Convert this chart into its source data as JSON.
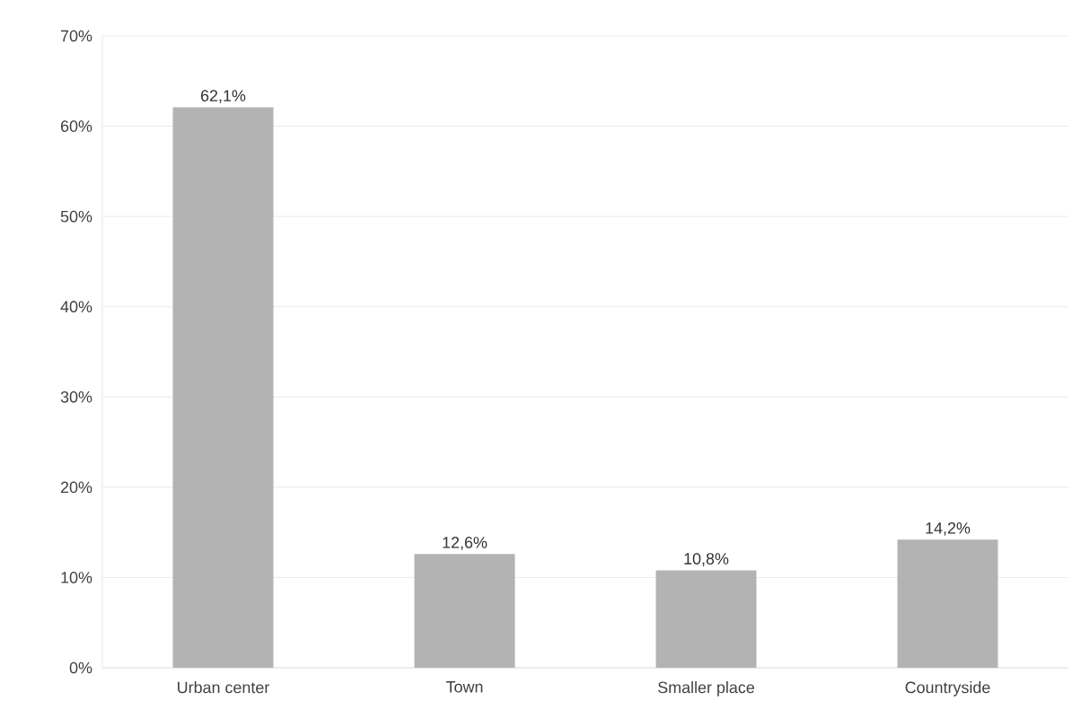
{
  "chart_data": {
    "type": "bar",
    "categories": [
      "Urban center",
      "Town",
      "Smaller place",
      "Countryside"
    ],
    "values": [
      62.1,
      12.6,
      10.8,
      14.2
    ],
    "value_labels": [
      "62,1%",
      "12,6%",
      "10,8%",
      "14,2%"
    ],
    "color": "#b3b3b3",
    "ylim": [
      0,
      70
    ],
    "yticks": [
      {
        "value": 0,
        "label": "0%"
      },
      {
        "value": 10,
        "label": "10%"
      },
      {
        "value": 20,
        "label": "20%"
      },
      {
        "value": 30,
        "label": "30%"
      },
      {
        "value": 40,
        "label": "40%"
      },
      {
        "value": 50,
        "label": "50%"
      },
      {
        "value": 60,
        "label": "60%"
      },
      {
        "value": 70,
        "label": "70%"
      }
    ],
    "grid": "y"
  }
}
